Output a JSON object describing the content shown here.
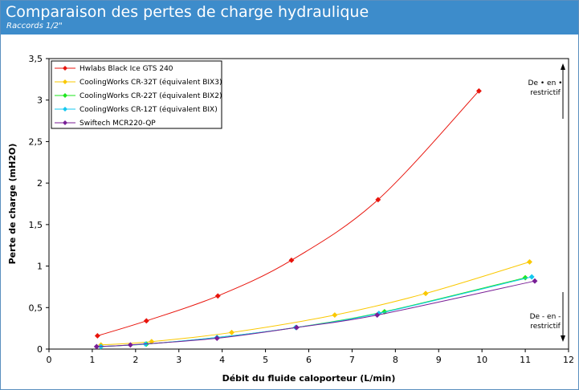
{
  "header": {
    "title": "Comparaison des pertes de charge hydraulique",
    "subtitle": "Raccords 1/2\""
  },
  "colors": {
    "header_bg": "#3d8ccb",
    "border": "#5a8fbf"
  },
  "annotations": {
    "top": [
      "De • en •",
      "restrictif"
    ],
    "bottom": [
      "De - en -",
      "restrictif"
    ]
  },
  "chart_data": {
    "type": "line",
    "title": "Comparaison des pertes de charge hydraulique",
    "subtitle": "Raccords 1/2\"",
    "xlabel": "Débit du fluide caloporteur (L/min)",
    "ylabel": "Perte de charge (mH2O)",
    "xlim": [
      0,
      12
    ],
    "ylim": [
      0,
      3.5
    ],
    "xticks": [
      0,
      1,
      2,
      3,
      4,
      5,
      6,
      7,
      8,
      9,
      10,
      11,
      12
    ],
    "yticks": [
      "0",
      "0,5",
      "1",
      "1,5",
      "2",
      "2,5",
      "3",
      "3,5"
    ],
    "grid": false,
    "legend_position": "top-left",
    "series": [
      {
        "name": "Hwlabs Black Ice GTS 240",
        "color": "#e8140c",
        "points": [
          [
            1.12,
            0.16
          ],
          [
            2.25,
            0.34
          ],
          [
            3.9,
            0.64
          ],
          [
            5.6,
            1.07
          ],
          [
            7.6,
            1.8
          ],
          [
            9.93,
            3.11
          ]
        ]
      },
      {
        "name": "CoolingWorks CR-32T (équivalent BIX3)",
        "color": "#fac800",
        "points": [
          [
            1.2,
            0.05
          ],
          [
            2.37,
            0.09
          ],
          [
            4.22,
            0.2
          ],
          [
            6.6,
            0.41
          ],
          [
            8.7,
            0.67
          ],
          [
            11.1,
            1.05
          ]
        ]
      },
      {
        "name": "CoolingWorks CR-22T (équivalent BIX2)",
        "color": "#1ee61e",
        "points": [
          [
            1.2,
            0.03
          ],
          [
            2.25,
            0.06
          ],
          [
            3.88,
            0.14
          ],
          [
            5.7,
            0.26
          ],
          [
            7.75,
            0.45
          ],
          [
            11.0,
            0.86
          ]
        ]
      },
      {
        "name": "CoolingWorks CR-12T (équivalent BIX)",
        "color": "#14c8f0",
        "points": [
          [
            1.2,
            0.03
          ],
          [
            2.23,
            0.06
          ],
          [
            3.88,
            0.14
          ],
          [
            5.7,
            0.26
          ],
          [
            7.62,
            0.43
          ],
          [
            11.15,
            0.87
          ]
        ]
      },
      {
        "name": "Swiftech MCR220-QP",
        "color": "#781e96",
        "points": [
          [
            1.1,
            0.03
          ],
          [
            1.88,
            0.05
          ],
          [
            3.88,
            0.13
          ],
          [
            5.72,
            0.26
          ],
          [
            7.58,
            0.41
          ],
          [
            11.22,
            0.82
          ]
        ]
      }
    ]
  }
}
